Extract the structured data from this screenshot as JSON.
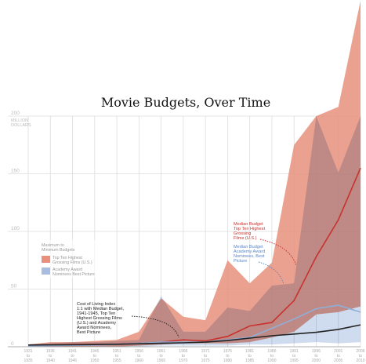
{
  "chart_data": {
    "type": "area",
    "title": "Movie Budgets, Over Time",
    "ylabel": "MILLION DOLLARS",
    "yticks": [
      0,
      50,
      100,
      150,
      200
    ],
    "ylim": [
      0,
      200
    ],
    "categories": [
      [
        "1931",
        "to",
        "1935"
      ],
      [
        "1936",
        "to",
        "1940"
      ],
      [
        "1941",
        "to",
        "1945"
      ],
      [
        "1946",
        "to",
        "1950"
      ],
      [
        "1951",
        "to",
        "1955"
      ],
      [
        "1956",
        "to",
        "1960"
      ],
      [
        "1961",
        "to",
        "1965"
      ],
      [
        "1966",
        "to",
        "1970"
      ],
      [
        "1971",
        "to",
        "1975"
      ],
      [
        "1976",
        "to",
        "1980"
      ],
      [
        "1981",
        "to",
        "1985"
      ],
      [
        "1986",
        "to",
        "1990"
      ],
      [
        "1991",
        "to",
        "1995"
      ],
      [
        "1996",
        "to",
        "2000"
      ],
      [
        "2001",
        "to",
        "2005"
      ],
      [
        "2006",
        "to",
        "2010"
      ]
    ],
    "series": [
      {
        "name": "Top Ten Highest Grossing Films (U.S.)",
        "role": "max-min-band",
        "color": "#E8907C",
        "max": [
          2,
          4,
          4,
          5,
          6,
          13,
          42,
          26,
          23,
          75,
          55,
          73,
          175,
          200,
          208,
          300
        ],
        "min": [
          0,
          0,
          0,
          0,
          0,
          1,
          2,
          3,
          3,
          3,
          4,
          8,
          13,
          28,
          30,
          35
        ]
      },
      {
        "name": "Academy Award Nominees Best Picture",
        "role": "max-min-band",
        "color": "#A8BDE0",
        "max": [
          2,
          3,
          4,
          4,
          5,
          6,
          44,
          13,
          13,
          34,
          31,
          53,
          55,
          200,
          151,
          200
        ],
        "min": [
          0,
          0,
          0,
          0,
          0,
          0,
          1,
          1,
          1,
          1,
          2,
          2,
          3,
          4,
          3,
          4
        ]
      },
      {
        "name": "Median Budget Top Ten Highest Grossing Films (U.S.)",
        "role": "line",
        "color": "#C8322D",
        "values": [
          1,
          1.5,
          2,
          2,
          2,
          3,
          4,
          6,
          5,
          9,
          18,
          21,
          40,
          78,
          110,
          155
        ]
      },
      {
        "name": "Median Budget Academy Award Nominees, Best Picture",
        "role": "line",
        "color": "#8FAFD8",
        "values": [
          0.5,
          1,
          1.2,
          1.5,
          2,
          3,
          4,
          4,
          4,
          6,
          8,
          16,
          24,
          33,
          36,
          30
        ]
      },
      {
        "name": "Cost of Living Index",
        "role": "line",
        "color": "#222222",
        "values": [
          1.5,
          1.6,
          1.7,
          1.9,
          2.2,
          2.6,
          3.0,
          3.4,
          4.0,
          5.4,
          7.5,
          9.5,
          11,
          12.5,
          15,
          19
        ]
      }
    ],
    "legend": {
      "heading": [
        "Maximum to",
        "Minimum Budgets"
      ],
      "items": [
        {
          "label": [
            "Top Ten Highest",
            "Grossing Films (U.S.)"
          ],
          "color": "#E8907C"
        },
        {
          "label": [
            "Academy Award",
            "Nominees Best Picture"
          ],
          "color": "#A8BDE0"
        }
      ],
      "placement": "left-center"
    },
    "annotations": [
      {
        "id": "median-top-ten",
        "lines": [
          "Median Budget",
          "Top Ten Highest",
          "Grossing",
          "Films (U.S.)"
        ],
        "color": "#C8322D"
      },
      {
        "id": "median-academy",
        "lines": [
          "Median Budget",
          "Academy Award",
          "Nominees, Best",
          "Picture"
        ],
        "color": "#5B86C4"
      },
      {
        "id": "cost-of-living",
        "lines": [
          "Cost of Living Index",
          "1:1 with Median Budget,",
          "1941-1945, Top Ten",
          "Highest Grossing Films",
          "(U.S.) and Academy",
          "Award Nominees,",
          "Best Picture"
        ],
        "color": "#222222"
      }
    ],
    "grid": true
  }
}
